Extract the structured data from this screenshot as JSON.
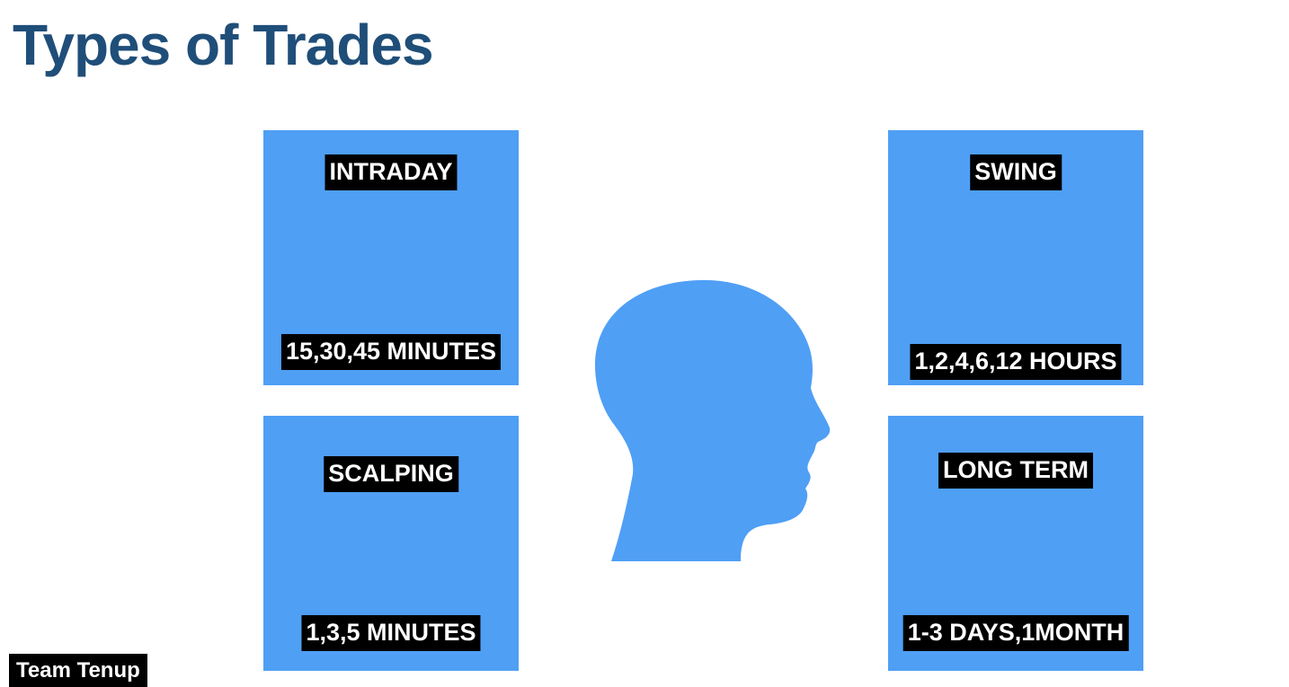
{
  "slide": {
    "title": "Types of Trades"
  },
  "cards": {
    "intraday": {
      "name": "INTRADAY",
      "timeframe": "15,30,45 MINUTES"
    },
    "scalping": {
      "name": "SCALPING",
      "timeframe": "1,3,5 MINUTES"
    },
    "swing": {
      "name": "SWING",
      "timeframe": "1,2,4,6,12 HOURS"
    },
    "long_term": {
      "name": "LONG TERM",
      "timeframe": "1-3 DAYS,1MONTH"
    }
  },
  "illustration": {
    "icon": "head-profile-icon",
    "color": "#4f9ff5"
  },
  "colors": {
    "title": "#1f4e79",
    "card": "#4f9ff5",
    "label_bg": "#000000",
    "label_text": "#ffffff"
  },
  "footer": {
    "badge": "Team Tenup"
  }
}
